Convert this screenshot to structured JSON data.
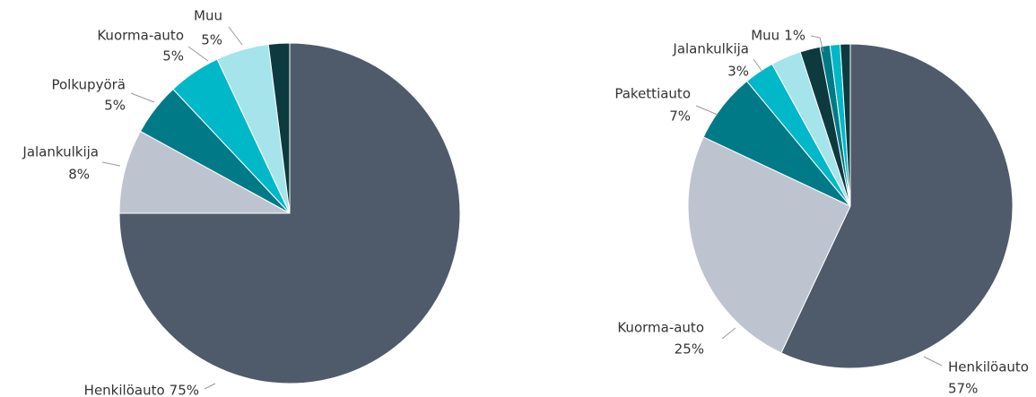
{
  "chart_data": [
    {
      "type": "pie",
      "categories": [
        "Henkilöauto",
        "Jalankulkija",
        "Polkupyörä",
        "Kuorma-auto",
        "Muu",
        null
      ],
      "values": [
        75,
        8,
        5,
        5,
        5,
        2
      ],
      "value_labels": [
        "75%",
        "8%",
        "5%",
        "5%",
        "5%",
        null
      ],
      "colors": [
        "#4f5b6b",
        "#bec4cf",
        "#007a87",
        "#00b8c8",
        "#a6e4ec",
        "#0d3a3f"
      ]
    },
    {
      "type": "pie",
      "categories": [
        "Henkilöauto",
        "Kuorma-auto",
        "Pakettiauto",
        "Jalankulkija",
        null,
        null,
        "Muu",
        null,
        null
      ],
      "values": [
        57,
        25,
        7,
        3,
        3,
        2,
        1,
        1,
        1
      ],
      "value_labels": [
        "57%",
        "25%",
        "7%",
        "3%",
        null,
        null,
        "1%",
        null,
        null
      ],
      "colors": [
        "#4f5b6b",
        "#bec4cf",
        "#007a87",
        "#00b8c8",
        "#a6e4ec",
        "#0d3a3f",
        "#007a87",
        "#00b8c8",
        "#0d3a3f"
      ]
    }
  ]
}
